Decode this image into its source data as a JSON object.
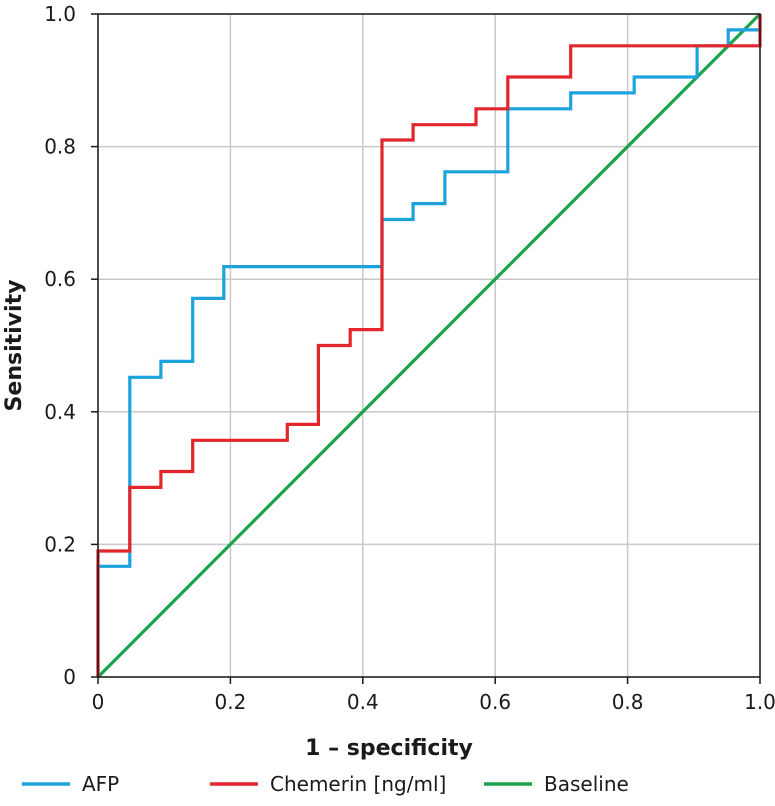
{
  "chart_data": {
    "type": "line",
    "title": "",
    "xlabel": "1 – specificity",
    "ylabel": "Sensitivity",
    "xlim": [
      0,
      1
    ],
    "ylim": [
      0,
      1
    ],
    "grid": true,
    "legend_position": "bottom",
    "x_ticks": [
      0,
      0.2,
      0.4,
      0.6,
      0.8,
      1.0
    ],
    "x_tick_labels": [
      "0",
      "0.2",
      "0.4",
      "0.6",
      "0.8",
      "1.0"
    ],
    "y_ticks": [
      0,
      0.2,
      0.4,
      0.6,
      0.8,
      1.0
    ],
    "y_tick_labels": [
      "0",
      "0.2",
      "0.4",
      "0.6",
      "0.8",
      "1.0"
    ],
    "series": [
      {
        "name": "AFP",
        "color": "#1ca3dc",
        "step": true,
        "points": [
          [
            0,
            0
          ],
          [
            0,
            0.167
          ],
          [
            0.048,
            0.167
          ],
          [
            0.048,
            0.452
          ],
          [
            0.095,
            0.452
          ],
          [
            0.095,
            0.476
          ],
          [
            0.143,
            0.476
          ],
          [
            0.143,
            0.571
          ],
          [
            0.19,
            0.571
          ],
          [
            0.19,
            0.619
          ],
          [
            0.429,
            0.619
          ],
          [
            0.429,
            0.69
          ],
          [
            0.476,
            0.69
          ],
          [
            0.476,
            0.714
          ],
          [
            0.524,
            0.714
          ],
          [
            0.524,
            0.762
          ],
          [
            0.619,
            0.762
          ],
          [
            0.619,
            0.857
          ],
          [
            0.714,
            0.857
          ],
          [
            0.714,
            0.881
          ],
          [
            0.81,
            0.881
          ],
          [
            0.81,
            0.905
          ],
          [
            0.905,
            0.905
          ],
          [
            0.905,
            0.952
          ],
          [
            0.952,
            0.952
          ],
          [
            0.952,
            0.976
          ],
          [
            1.0,
            0.976
          ],
          [
            1.0,
            1.0
          ]
        ]
      },
      {
        "name": "Chemerin [ng/ml]",
        "color": "#e3262c",
        "step": true,
        "points": [
          [
            0,
            0
          ],
          [
            0,
            0.19
          ],
          [
            0.048,
            0.19
          ],
          [
            0.048,
            0.286
          ],
          [
            0.095,
            0.286
          ],
          [
            0.095,
            0.31
          ],
          [
            0.143,
            0.31
          ],
          [
            0.143,
            0.357
          ],
          [
            0.286,
            0.357
          ],
          [
            0.286,
            0.381
          ],
          [
            0.333,
            0.381
          ],
          [
            0.333,
            0.5
          ],
          [
            0.381,
            0.5
          ],
          [
            0.381,
            0.524
          ],
          [
            0.429,
            0.524
          ],
          [
            0.429,
            0.81
          ],
          [
            0.476,
            0.81
          ],
          [
            0.476,
            0.833
          ],
          [
            0.571,
            0.833
          ],
          [
            0.571,
            0.857
          ],
          [
            0.619,
            0.857
          ],
          [
            0.619,
            0.905
          ],
          [
            0.714,
            0.905
          ],
          [
            0.714,
            0.952
          ],
          [
            1.0,
            0.952
          ],
          [
            1.0,
            1.0
          ]
        ]
      },
      {
        "name": "Baseline",
        "color": "#1aa34a",
        "step": false,
        "points": [
          [
            0,
            0
          ],
          [
            1,
            1
          ]
        ]
      }
    ]
  }
}
